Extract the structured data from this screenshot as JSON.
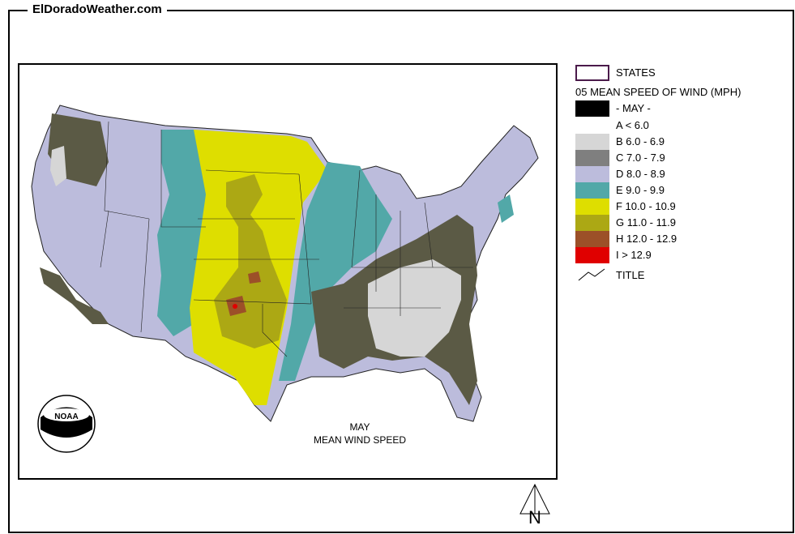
{
  "site_title": "ElDoradoWeather.com",
  "map": {
    "caption_month": "MAY",
    "caption_title": "MEAN WIND SPEED",
    "logo_text": "NOAA"
  },
  "legend": {
    "states_label": "STATES",
    "title": "05 MEAN SPEED OF WIND (MPH)",
    "month_label": "- MAY -",
    "classes": [
      {
        "label": "A < 6.0",
        "color": "#ffffff"
      },
      {
        "label": "B 6.0 - 6.9",
        "color": "#d6d6d6"
      },
      {
        "label": "C 7.0 - 7.9",
        "color": "#7f7f7f"
      },
      {
        "label": "D 8.0 - 8.9",
        "color": "#bcbcdc"
      },
      {
        "label": "E 9.0 - 9.9",
        "color": "#52a8a8"
      },
      {
        "label": "F 10.0 - 10.9",
        "color": "#dede00"
      },
      {
        "label": "G 11.0 - 11.9",
        "color": "#aca814"
      },
      {
        "label": "H 12.0 - 12.9",
        "color": "#9c5028"
      },
      {
        "label": "I > 12.9",
        "color": "#e00000"
      }
    ],
    "title_line_label": "TITLE"
  },
  "north_label": "N"
}
